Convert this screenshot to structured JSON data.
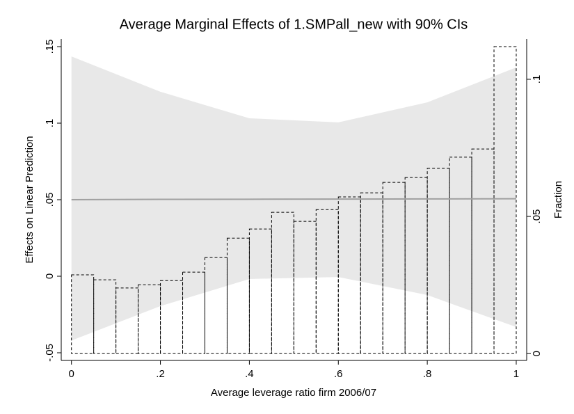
{
  "chart_data": {
    "type": "margins",
    "title": "Average Marginal Effects of 1.SMPall_new with 90% CIs",
    "xlabel": "Average leverage ratio firm 2006/07",
    "ylabel": "Effects on Linear Prediction",
    "y2label": "Fraction",
    "x": [
      0,
      0.2,
      0.4,
      0.6,
      0.8,
      1
    ],
    "values": [
      0.05,
      0.0502,
      0.0503,
      0.0504,
      0.0505,
      0.0506
    ],
    "ci_upper": [
      0.1436,
      0.1205,
      0.1032,
      0.1005,
      0.1136,
      0.1364
    ],
    "ci_lower": [
      -0.042,
      -0.0195,
      -0.0018,
      -0.0005,
      -0.0123,
      -0.0332
    ],
    "line_color": "#a0a0a0",
    "ci_color": "#e8e8e8",
    "histogram": {
      "axis": "y2",
      "color": "#000000",
      "bins": [
        0,
        0.05,
        0.1,
        0.15,
        0.2,
        0.25,
        0.3,
        0.35,
        0.4,
        0.45,
        0.5,
        0.55,
        0.6,
        0.65,
        0.7,
        0.75,
        0.8,
        0.85,
        0.9,
        0.95,
        1
      ],
      "counts": [
        0.0287,
        0.0269,
        0.0239,
        0.0251,
        0.0266,
        0.0297,
        0.035,
        0.0421,
        0.0454,
        0.0515,
        0.0482,
        0.0525,
        0.0571,
        0.0586,
        0.0624,
        0.0642,
        0.0675,
        0.0716,
        0.0746,
        0.1119
      ]
    },
    "xlim": [
      -0.023,
      1.0235
    ],
    "xticks": [
      0,
      {
        "value": 0.2,
        "label": ".2"
      },
      {
        "value": 0.4,
        "label": ".4"
      },
      {
        "value": 0.6,
        "label": ".6"
      },
      {
        "value": 0.8,
        "label": ".8"
      },
      1
    ],
    "ylim": [
      -0.055,
      0.155
    ],
    "yticks": [
      {
        "value": -0.05,
        "label": "-.05"
      },
      0,
      {
        "value": 0.05,
        "label": ".05"
      },
      {
        "value": 0.1,
        "label": ".1"
      },
      {
        "value": 0.15,
        "label": ".15"
      }
    ],
    "y2lim": [
      -0.0025,
      0.1147
    ],
    "y2ticks": [
      0,
      {
        "value": 0.05,
        "label": ".05"
      },
      {
        "value": 0.1,
        "label": ".1"
      }
    ]
  }
}
